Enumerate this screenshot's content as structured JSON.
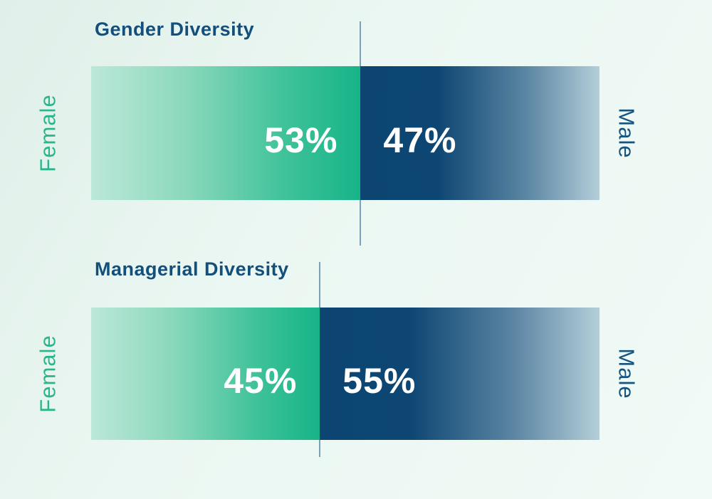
{
  "colors": {
    "background_main": "#ecf8f3",
    "title_text": "#124f7c",
    "female_accent": "#2cb48b",
    "male_accent": "#16537f",
    "green_gradient_start": "#bce8d9",
    "green_gradient_end": "#17b488",
    "blue_gradient_start": "#0c4571",
    "blue_gradient_end": "#b4ced9",
    "divider_line": "#7da0bb",
    "value_text": "#ffffff"
  },
  "charts": [
    {
      "title": "Gender Diversity",
      "female_label": "Female",
      "male_label": "Male",
      "female_value": 53,
      "male_value": 47,
      "female_value_label": "53%",
      "male_value_label": "47%"
    },
    {
      "title": "Managerial Diversity",
      "female_label": "Female",
      "male_label": "Male",
      "female_value": 45,
      "male_value": 55,
      "female_value_label": "45%",
      "male_value_label": "55%"
    }
  ],
  "chart_data": [
    {
      "type": "bar",
      "subtype": "horizontal-stacked-100pct",
      "title": "Gender Diversity",
      "categories": [
        "Female",
        "Male"
      ],
      "values": [
        53,
        47
      ],
      "units": "%",
      "legend_position": "sides-rotated",
      "grid": false,
      "annotations": [
        "divider line at 53% split"
      ]
    },
    {
      "type": "bar",
      "subtype": "horizontal-stacked-100pct",
      "title": "Managerial Diversity",
      "categories": [
        "Female",
        "Male"
      ],
      "values": [
        45,
        55
      ],
      "units": "%",
      "legend_position": "sides-rotated",
      "grid": false,
      "annotations": [
        "divider line at 45% split"
      ]
    }
  ]
}
